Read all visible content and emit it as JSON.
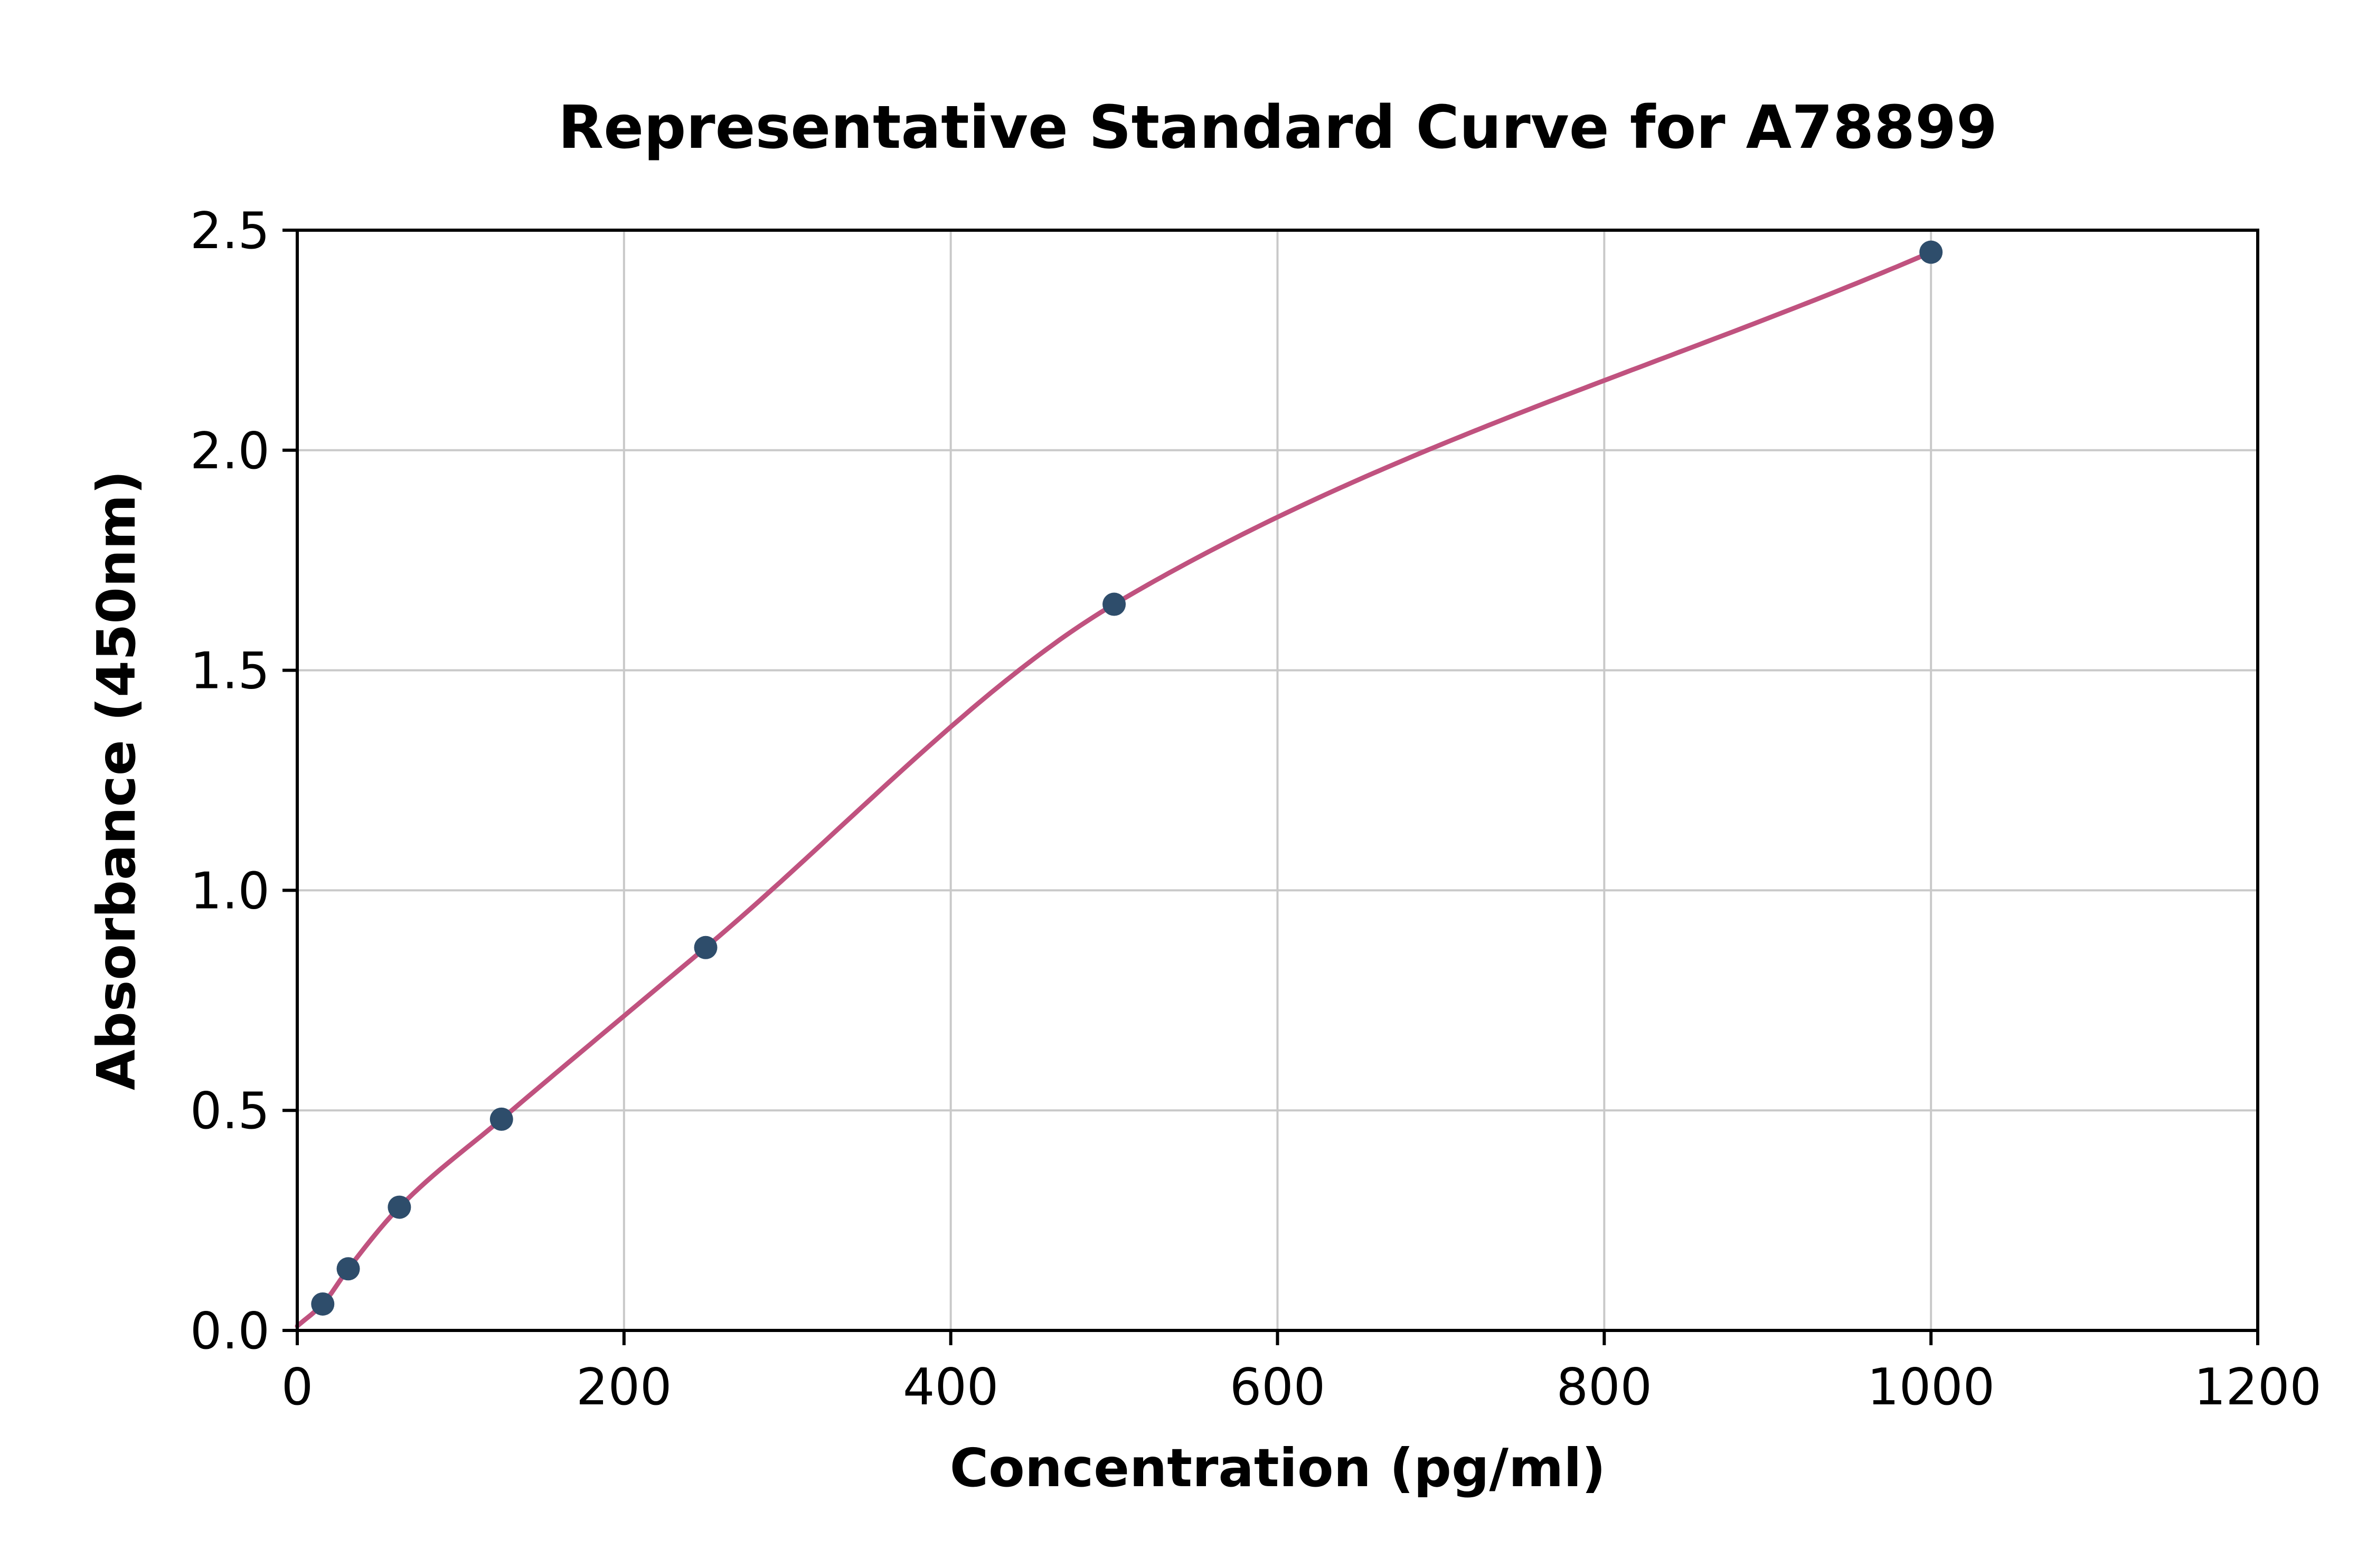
{
  "chart_data": {
    "type": "scatter",
    "title": "Representative Standard Curve for A78899",
    "xlabel": "Concentration (pg/ml)",
    "ylabel": "Absorbance (450nm)",
    "xlim": [
      0,
      1200
    ],
    "ylim": [
      0,
      2.5
    ],
    "x_ticks": [
      0,
      200,
      400,
      600,
      800,
      1000,
      1200
    ],
    "x_tick_labels": [
      "0",
      "200",
      "400",
      "600",
      "800",
      "1000",
      "1200"
    ],
    "y_ticks": [
      0,
      0.5,
      1.0,
      1.5,
      2.0,
      2.5
    ],
    "y_tick_labels": [
      "0.0",
      "0.5",
      "1.0",
      "1.5",
      "2.0",
      "2.5"
    ],
    "grid": true,
    "legend": "none",
    "points": {
      "x": [
        15.6,
        31.2,
        62.5,
        125,
        250,
        500,
        1000
      ],
      "y": [
        0.06,
        0.14,
        0.28,
        0.48,
        0.87,
        1.65,
        2.45
      ]
    },
    "fit_curve": {
      "x_start": 0,
      "y_start": 0.01,
      "x_end": 1000
    },
    "colors": {
      "point": "#2e4d6b",
      "curve": "#c0527f",
      "grid": "#c9c9c9",
      "axis": "#000000",
      "background": "#ffffff"
    }
  }
}
